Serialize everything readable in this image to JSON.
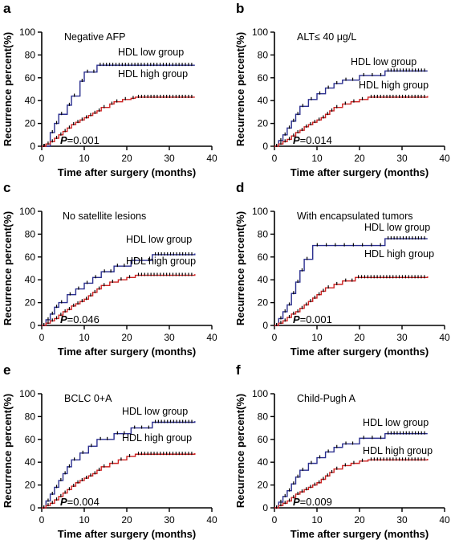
{
  "chart_data": [
    {
      "type": "line",
      "panel_label": "a",
      "annotation": "Negative AFP",
      "xlabel": "Time after surgery (months)",
      "ylabel": "Recurrence percent(%)",
      "xlim": [
        0,
        40
      ],
      "ylim": [
        0,
        100
      ],
      "xticks": [
        "0",
        "10",
        "20",
        "30",
        "40"
      ],
      "yticks": [
        "0",
        "20",
        "40",
        "60",
        "80",
        "100"
      ],
      "p_prefix": "P",
      "p_value": "=0.001",
      "series": [
        {
          "name": "HDL low group",
          "color": "#2b2f8f",
          "x": [
            0,
            2,
            3,
            4,
            6,
            7,
            9,
            10,
            13,
            36
          ],
          "y": [
            0,
            12,
            20,
            28,
            36,
            44,
            57,
            65,
            71,
            71
          ]
        },
        {
          "name": "HDL high group",
          "color": "#cc2222",
          "x": [
            0,
            1,
            2,
            3,
            4,
            5,
            6,
            7,
            8,
            9,
            10,
            11,
            12,
            13,
            14,
            16,
            17,
            19,
            21,
            22,
            36
          ],
          "y": [
            0,
            2,
            4,
            7,
            10,
            13,
            16,
            19,
            21,
            23,
            25,
            27,
            29,
            31,
            34,
            37,
            39,
            41,
            42,
            43,
            43
          ]
        }
      ]
    },
    {
      "type": "line",
      "panel_label": "b",
      "annotation": "ALT≤ 40 μg/L",
      "xlabel": "Time after surgery (months)",
      "ylabel": "Recurrence percent(%)",
      "xlim": [
        0,
        40
      ],
      "ylim": [
        0,
        100
      ],
      "xticks": [
        "0",
        "10",
        "20",
        "30",
        "40"
      ],
      "yticks": [
        "0",
        "20",
        "40",
        "60",
        "80",
        "100"
      ],
      "p_prefix": "P",
      "p_value": "=0.014",
      "series": [
        {
          "name": "HDL low group",
          "color": "#2b2f8f",
          "x": [
            0,
            1,
            2,
            3,
            4,
            5,
            6,
            8,
            10,
            12,
            14,
            16,
            20,
            26,
            36
          ],
          "y": [
            0,
            5,
            10,
            16,
            22,
            28,
            35,
            41,
            46,
            51,
            55,
            58,
            62,
            66,
            66
          ]
        },
        {
          "name": "HDL high group",
          "color": "#cc2222",
          "x": [
            0,
            1,
            2,
            3,
            4,
            5,
            6,
            7,
            8,
            9,
            10,
            11,
            12,
            13,
            14,
            16,
            18,
            20,
            22,
            36
          ],
          "y": [
            0,
            2,
            4,
            6,
            9,
            12,
            14,
            17,
            19,
            21,
            23,
            25,
            28,
            31,
            34,
            37,
            39,
            41,
            43,
            44
          ]
        }
      ]
    },
    {
      "type": "line",
      "panel_label": "c",
      "annotation": "No satellite lesions",
      "xlabel": "Time after surgery (months)",
      "ylabel": "Recurrence percent(%)",
      "xlim": [
        0,
        40
      ],
      "ylim": [
        0,
        100
      ],
      "xticks": [
        "0",
        "10",
        "20",
        "30",
        "40"
      ],
      "yticks": [
        "0",
        "20",
        "40",
        "60",
        "80",
        "100"
      ],
      "p_prefix": "P",
      "p_value": "=0.046",
      "series": [
        {
          "name": "HDL low group",
          "color": "#2b2f8f",
          "x": [
            0,
            1,
            2,
            3,
            4,
            6,
            8,
            10,
            12,
            14,
            17,
            21,
            26,
            36
          ],
          "y": [
            0,
            5,
            10,
            16,
            20,
            27,
            32,
            37,
            42,
            47,
            52,
            57,
            62,
            63
          ]
        },
        {
          "name": "HDL high group",
          "color": "#cc2222",
          "x": [
            0,
            1,
            2,
            3,
            4,
            5,
            6,
            7,
            8,
            9,
            10,
            11,
            12,
            13,
            14,
            16,
            18,
            20,
            22,
            36
          ],
          "y": [
            0,
            2,
            4,
            6,
            9,
            12,
            14,
            17,
            19,
            21,
            23,
            26,
            29,
            32,
            35,
            38,
            40,
            42,
            44,
            45
          ]
        }
      ]
    },
    {
      "type": "line",
      "panel_label": "d",
      "annotation": "With encapsulated tumors",
      "xlabel": "Time after surgery (months)",
      "ylabel": "Recurrence percent(%)",
      "xlim": [
        0,
        40
      ],
      "ylim": [
        0,
        100
      ],
      "xticks": [
        "0",
        "10",
        "20",
        "30",
        "40"
      ],
      "yticks": [
        "0",
        "20",
        "40",
        "60",
        "80",
        "100"
      ],
      "p_prefix": "P",
      "p_value": "=0.001",
      "series": [
        {
          "name": "HDL low group",
          "color": "#2b2f8f",
          "x": [
            0,
            1,
            2,
            3,
            4,
            5,
            6,
            7,
            9,
            26,
            36
          ],
          "y": [
            0,
            6,
            12,
            18,
            28,
            38,
            48,
            58,
            70,
            76,
            76
          ]
        },
        {
          "name": "HDL high group",
          "color": "#cc2222",
          "x": [
            0,
            1,
            2,
            3,
            4,
            5,
            6,
            7,
            8,
            9,
            10,
            11,
            12,
            14,
            16,
            19,
            36
          ],
          "y": [
            0,
            2,
            4,
            7,
            10,
            12,
            15,
            18,
            21,
            24,
            27,
            30,
            33,
            36,
            39,
            42,
            43
          ]
        }
      ]
    },
    {
      "type": "line",
      "panel_label": "e",
      "annotation": "BCLC 0+A",
      "xlabel": "Time after surgery (months)",
      "ylabel": "Recurrence percent(%)",
      "xlim": [
        0,
        40
      ],
      "ylim": [
        0,
        100
      ],
      "xticks": [
        "0",
        "10",
        "20",
        "30",
        "40"
      ],
      "yticks": [
        "0",
        "20",
        "40",
        "60",
        "80",
        "100"
      ],
      "p_prefix": "P",
      "p_value": "=0.004",
      "series": [
        {
          "name": "HDL low group",
          "color": "#2b2f8f",
          "x": [
            0,
            1,
            2,
            3,
            4,
            5,
            6,
            7,
            9,
            11,
            13,
            17,
            21,
            26,
            36
          ],
          "y": [
            0,
            6,
            12,
            18,
            24,
            30,
            36,
            42,
            48,
            54,
            60,
            65,
            70,
            75,
            76
          ]
        },
        {
          "name": "HDL high group",
          "color": "#cc2222",
          "x": [
            0,
            1,
            2,
            3,
            4,
            5,
            6,
            7,
            8,
            9,
            10,
            11,
            12,
            13,
            14,
            16,
            18,
            20,
            22,
            36
          ],
          "y": [
            0,
            2,
            4,
            7,
            10,
            13,
            16,
            19,
            22,
            24,
            26,
            28,
            30,
            33,
            36,
            39,
            42,
            45,
            47,
            48
          ]
        }
      ]
    },
    {
      "type": "line",
      "panel_label": "f",
      "annotation": "Child-Pugh A",
      "xlabel": "Time after surgery (months)",
      "ylabel": "Recurrence percent(%)",
      "xlim": [
        0,
        40
      ],
      "ylim": [
        0,
        100
      ],
      "xticks": [
        "0",
        "10",
        "20",
        "30",
        "40"
      ],
      "yticks": [
        "0",
        "20",
        "40",
        "60",
        "80",
        "100"
      ],
      "p_prefix": "P",
      "p_value": "=0.009",
      "series": [
        {
          "name": "HDL low group",
          "color": "#2b2f8f",
          "x": [
            0,
            1,
            2,
            3,
            4,
            5,
            6,
            8,
            10,
            12,
            14,
            16,
            20,
            26,
            36
          ],
          "y": [
            0,
            5,
            10,
            15,
            21,
            27,
            33,
            39,
            44,
            49,
            53,
            56,
            61,
            65,
            65
          ]
        },
        {
          "name": "HDL high group",
          "color": "#cc2222",
          "x": [
            0,
            1,
            2,
            3,
            4,
            5,
            6,
            7,
            8,
            9,
            10,
            11,
            12,
            13,
            14,
            16,
            18,
            20,
            22,
            36
          ],
          "y": [
            0,
            2,
            4,
            6,
            9,
            12,
            14,
            16,
            18,
            20,
            22,
            25,
            28,
            31,
            34,
            37,
            39,
            41,
            42,
            43
          ]
        }
      ]
    }
  ]
}
